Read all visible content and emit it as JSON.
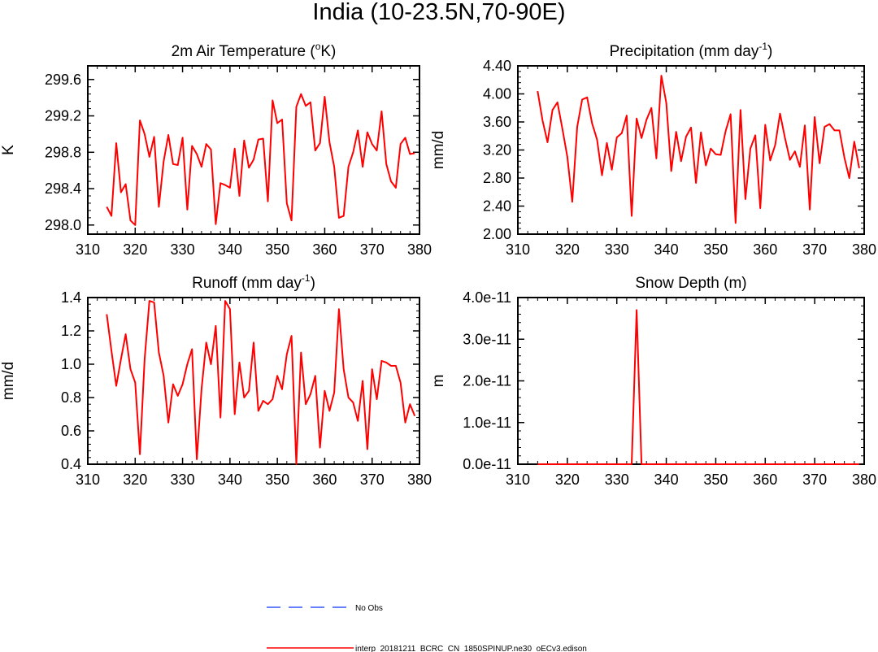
{
  "page_title": "India (10-23.5N,70-90E)",
  "colors": {
    "model_line": "#ff0000",
    "obs_line": "#3355ff",
    "axis": "#000000"
  },
  "legend": [
    {
      "label": "No Obs",
      "style": "dashed",
      "color": "#3355ff"
    },
    {
      "label": "interp_20181211_BCRC_CN_1850SPINUP.ne30_oECv3.edison",
      "style": "solid",
      "color": "#ff0000"
    }
  ],
  "chart_data": [
    {
      "type": "line",
      "title": "2m Air Temperature (°K)",
      "title_base": "2m Air Temperature (",
      "title_sup": "o",
      "title_tail": "K)",
      "ylabel": "K",
      "xlim": [
        310,
        380
      ],
      "ylim": [
        297.9,
        299.75
      ],
      "xticks": [
        310,
        320,
        330,
        340,
        350,
        360,
        370,
        380
      ],
      "yticks": [
        298.0,
        298.4,
        298.8,
        299.2,
        299.6
      ],
      "ytick_labels": [
        "298.0",
        "298.4",
        "298.8",
        "299.2",
        "299.6"
      ],
      "x": [
        314,
        315,
        316,
        317,
        318,
        319,
        320,
        321,
        322,
        323,
        324,
        325,
        326,
        327,
        328,
        329,
        330,
        331,
        332,
        333,
        334,
        335,
        336,
        337,
        338,
        339,
        340,
        341,
        342,
        343,
        344,
        345,
        346,
        347,
        348,
        349,
        350,
        351,
        352,
        353,
        354,
        355,
        356,
        357,
        358,
        359,
        360,
        361,
        362,
        363,
        364,
        365,
        366,
        367,
        368,
        369,
        370,
        371,
        372,
        373,
        374,
        375,
        376,
        377,
        378,
        379
      ],
      "y": [
        298.2,
        298.1,
        298.9,
        298.36,
        298.45,
        298.05,
        298.0,
        299.15,
        299.0,
        298.75,
        298.97,
        298.2,
        298.7,
        298.99,
        298.67,
        298.66,
        298.96,
        298.17,
        298.87,
        298.78,
        298.64,
        298.89,
        298.83,
        298.01,
        298.46,
        298.44,
        298.41,
        298.84,
        298.32,
        298.93,
        298.63,
        298.72,
        298.94,
        298.95,
        298.26,
        299.37,
        299.12,
        299.16,
        298.24,
        298.05,
        299.3,
        299.44,
        299.31,
        299.35,
        298.82,
        298.9,
        299.41,
        298.91,
        298.64,
        298.08,
        298.1,
        298.64,
        298.8,
        299.04,
        298.64,
        299.02,
        298.89,
        298.82,
        299.25,
        298.67,
        298.48,
        298.41,
        298.89,
        298.96,
        298.78,
        298.79
      ]
    },
    {
      "type": "line",
      "title": "Precipitation (mm day-1)",
      "title_base": "Precipitation (mm day",
      "title_sup": "-1",
      "title_tail": ")",
      "ylabel": "mm/d",
      "xlim": [
        310,
        380
      ],
      "ylim": [
        2.0,
        4.4
      ],
      "xticks": [
        310,
        320,
        330,
        340,
        350,
        360,
        370,
        380
      ],
      "yticks": [
        2.0,
        2.4,
        2.8,
        3.2,
        3.6,
        4.0,
        4.4
      ],
      "ytick_labels": [
        "2.00",
        "2.40",
        "2.80",
        "3.20",
        "3.60",
        "4.00",
        "4.40"
      ],
      "x": [
        314,
        315,
        316,
        317,
        318,
        319,
        320,
        321,
        322,
        323,
        324,
        325,
        326,
        327,
        328,
        329,
        330,
        331,
        332,
        333,
        334,
        335,
        336,
        337,
        338,
        339,
        340,
        341,
        342,
        343,
        344,
        345,
        346,
        347,
        348,
        349,
        350,
        351,
        352,
        353,
        354,
        355,
        356,
        357,
        358,
        359,
        360,
        361,
        362,
        363,
        364,
        365,
        366,
        367,
        368,
        369,
        370,
        371,
        372,
        373,
        374,
        375,
        376,
        377,
        378,
        379
      ],
      "y": [
        4.04,
        3.62,
        3.31,
        3.77,
        3.88,
        3.5,
        3.1,
        2.46,
        3.53,
        3.92,
        3.95,
        3.58,
        3.35,
        2.84,
        3.3,
        2.92,
        3.38,
        3.44,
        3.69,
        2.26,
        3.65,
        3.37,
        3.63,
        3.8,
        3.08,
        4.26,
        3.87,
        2.9,
        3.46,
        3.04,
        3.39,
        3.52,
        2.73,
        3.45,
        2.98,
        3.22,
        3.14,
        3.13,
        3.47,
        3.71,
        2.16,
        3.77,
        2.5,
        3.22,
        3.41,
        2.37,
        3.56,
        3.05,
        3.27,
        3.72,
        3.37,
        3.06,
        3.18,
        2.96,
        3.55,
        2.35,
        3.67,
        3.01,
        3.53,
        3.57,
        3.48,
        3.48,
        3.09,
        2.8,
        3.32,
        2.94
      ]
    },
    {
      "type": "line",
      "title": "Runoff (mm day-1)",
      "title_base": "Runoff (mm day",
      "title_sup": "-1",
      "title_tail": ")",
      "ylabel": "mm/d",
      "xlim": [
        310,
        380
      ],
      "ylim": [
        0.4,
        1.4
      ],
      "xticks": [
        310,
        320,
        330,
        340,
        350,
        360,
        370,
        380
      ],
      "yticks": [
        0.4,
        0.6,
        0.8,
        1.0,
        1.2,
        1.4
      ],
      "ytick_labels": [
        "0.4",
        "0.6",
        "0.8",
        "1.0",
        "1.2",
        "1.4"
      ],
      "x": [
        314,
        315,
        316,
        317,
        318,
        319,
        320,
        321,
        322,
        323,
        324,
        325,
        326,
        327,
        328,
        329,
        330,
        331,
        332,
        333,
        334,
        335,
        336,
        337,
        338,
        339,
        340,
        341,
        342,
        343,
        344,
        345,
        346,
        347,
        348,
        349,
        350,
        351,
        352,
        353,
        354,
        355,
        356,
        357,
        358,
        359,
        360,
        361,
        362,
        363,
        364,
        365,
        366,
        367,
        368,
        369,
        370,
        371,
        372,
        373,
        374,
        375,
        376,
        377,
        378,
        379
      ],
      "y": [
        1.3,
        1.08,
        0.87,
        1.03,
        1.18,
        0.97,
        0.89,
        0.46,
        1.03,
        1.38,
        1.37,
        1.07,
        0.93,
        0.65,
        0.88,
        0.81,
        0.88,
        1.0,
        1.09,
        0.43,
        0.85,
        1.13,
        1.0,
        1.23,
        0.68,
        1.38,
        1.33,
        0.7,
        1.01,
        0.8,
        0.84,
        1.13,
        0.72,
        0.78,
        0.76,
        0.79,
        0.93,
        0.85,
        1.06,
        1.17,
        0.4,
        1.07,
        0.76,
        0.82,
        0.93,
        0.5,
        0.84,
        0.72,
        0.83,
        1.33,
        0.97,
        0.8,
        0.77,
        0.66,
        0.9,
        0.49,
        0.97,
        0.79,
        1.02,
        1.01,
        0.99,
        0.99,
        0.89,
        0.65,
        0.76,
        0.69
      ]
    },
    {
      "type": "line",
      "title": "Snow Depth (m)",
      "title_base": "Snow Depth (m)",
      "title_sup": "",
      "title_tail": "",
      "ylabel": "m",
      "xlim": [
        310,
        380
      ],
      "ylim": [
        0,
        4e-11
      ],
      "xticks": [
        310,
        320,
        330,
        340,
        350,
        360,
        370,
        380
      ],
      "yticks": [
        0,
        1e-11,
        2e-11,
        3e-11,
        4e-11
      ],
      "ytick_labels": [
        "0.0e-11",
        "1.0e-11",
        "2.0e-11",
        "3.0e-11",
        "4.0e-11"
      ],
      "x": [
        314,
        315,
        316,
        317,
        318,
        319,
        320,
        321,
        322,
        323,
        324,
        325,
        326,
        327,
        328,
        329,
        330,
        331,
        332,
        333,
        334,
        335,
        336,
        337,
        338,
        339,
        340,
        341,
        342,
        343,
        344,
        345,
        346,
        347,
        348,
        349,
        350,
        351,
        352,
        353,
        354,
        355,
        356,
        357,
        358,
        359,
        360,
        361,
        362,
        363,
        364,
        365,
        366,
        367,
        368,
        369,
        370,
        371,
        372,
        373,
        374,
        375,
        376,
        377,
        378,
        379
      ],
      "y": [
        0,
        0,
        0,
        0,
        0,
        0,
        0,
        0,
        0,
        0,
        0,
        0,
        0,
        0,
        0,
        0,
        0,
        0,
        0,
        0,
        3.7e-11,
        0,
        0,
        0,
        0,
        0,
        0,
        0,
        0,
        0,
        0,
        0,
        0,
        0,
        0,
        0,
        0,
        0,
        0,
        0,
        0,
        0,
        0,
        0,
        0,
        0,
        0,
        0,
        0,
        0,
        0,
        0,
        0,
        0,
        0,
        0,
        0,
        0,
        0,
        0,
        0,
        0,
        0,
        0,
        0,
        0
      ]
    }
  ]
}
